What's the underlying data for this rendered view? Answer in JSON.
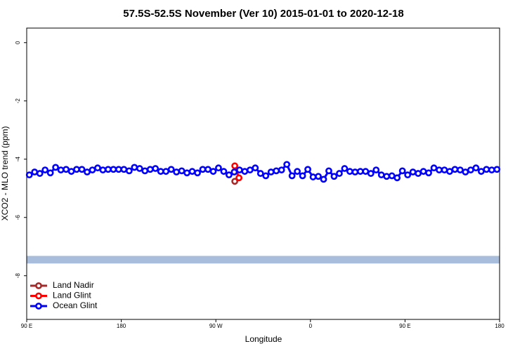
{
  "chart_data": {
    "type": "line",
    "title": "57.5S-52.5S November (Ver 10)   2015-01-01 to 2020-12-18",
    "x_label": "Longitude",
    "y_label": "XCO2 - MLO trend (ppm)",
    "xlim": [
      90,
      540
    ],
    "xticks": [
      {
        "value": 90,
        "label": "90 E"
      },
      {
        "value": 180,
        "label": "180"
      },
      {
        "value": 270,
        "label": "90 W"
      },
      {
        "value": 360,
        "label": "0"
      },
      {
        "value": 450,
        "label": "90 E"
      },
      {
        "value": 540,
        "label": "180"
      }
    ],
    "ylim": [
      -9.5,
      0.5
    ],
    "yticks": [
      0,
      -2,
      -4,
      -6,
      -8
    ],
    "legend": "bottomleft",
    "shaded_band": {
      "ylim": [
        -7.58,
        -7.32
      ],
      "color": "#a7bddb"
    },
    "series": [
      {
        "name": "Land Nadir",
        "color": "#a52a2a",
        "x": [
          288
        ],
        "values": [
          -4.76
        ]
      },
      {
        "name": "Land Glint",
        "color": "#ff0000",
        "x": [
          288,
          292
        ],
        "values": [
          -4.23,
          -4.64
        ]
      },
      {
        "name": "Ocean Glint",
        "color": "#0000ff",
        "x": [
          92.5,
          97.5,
          102.5,
          107.5,
          112.5,
          117.5,
          122.5,
          127.5,
          132.5,
          137.5,
          142.5,
          147.5,
          152.5,
          157.5,
          162.5,
          167.5,
          172.5,
          177.5,
          182.5,
          187.5,
          192.5,
          197.5,
          202.5,
          207.5,
          212.5,
          217.5,
          222.5,
          227.5,
          232.5,
          237.5,
          242.5,
          247.5,
          252.5,
          257.5,
          262.5,
          267.5,
          272.5,
          277.5,
          282.5,
          287.5,
          292.5,
          297.5,
          302.5,
          307.5,
          312.5,
          317.5,
          322.5,
          327.5,
          332.5,
          337.5,
          342.5,
          347.5,
          352.5,
          357.5,
          362.5,
          367.5,
          372.5,
          377.5,
          382.5,
          387.5,
          392.5,
          397.5,
          402.5,
          407.5,
          412.5,
          417.5,
          422.5,
          427.5,
          432.5,
          437.5,
          442.5,
          447.5,
          452.5,
          457.5,
          462.5,
          467.5,
          472.5,
          477.5,
          482.5,
          487.5,
          492.5,
          497.5,
          502.5,
          507.5,
          512.5,
          517.5,
          522.5,
          527.5,
          532.5,
          537.5
        ],
        "values": [
          -4.54,
          -4.44,
          -4.49,
          -4.37,
          -4.47,
          -4.28,
          -4.37,
          -4.35,
          -4.42,
          -4.35,
          -4.35,
          -4.44,
          -4.37,
          -4.3,
          -4.37,
          -4.35,
          -4.35,
          -4.35,
          -4.35,
          -4.4,
          -4.28,
          -4.32,
          -4.4,
          -4.35,
          -4.32,
          -4.42,
          -4.42,
          -4.35,
          -4.44,
          -4.4,
          -4.47,
          -4.42,
          -4.47,
          -4.35,
          -4.35,
          -4.42,
          -4.3,
          -4.42,
          -4.54,
          -4.44,
          -4.37,
          -4.42,
          -4.37,
          -4.3,
          -4.49,
          -4.57,
          -4.44,
          -4.4,
          -4.37,
          -4.18,
          -4.57,
          -4.42,
          -4.57,
          -4.35,
          -4.61,
          -4.59,
          -4.69,
          -4.4,
          -4.59,
          -4.49,
          -4.32,
          -4.42,
          -4.44,
          -4.42,
          -4.42,
          -4.49,
          -4.37,
          -4.54,
          -4.59,
          -4.57,
          -4.64,
          -4.4,
          -4.54,
          -4.44,
          -4.49,
          -4.42,
          -4.47,
          -4.3,
          -4.37,
          -4.37,
          -4.42,
          -4.35,
          -4.37,
          -4.44,
          -4.37,
          -4.3,
          -4.42,
          -4.35,
          -4.37,
          -4.35
        ]
      }
    ]
  }
}
